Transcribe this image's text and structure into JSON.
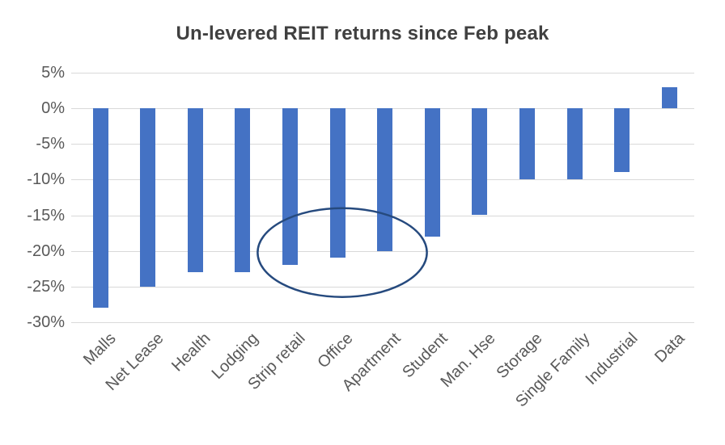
{
  "chart_data": {
    "type": "bar",
    "title": "Un-levered REIT returns since Feb peak",
    "categories": [
      "Malls",
      "Net Lease",
      "Health",
      "Lodging",
      "Strip retail",
      "Office",
      "Apartment",
      "Student",
      "Man. Hse",
      "Storage",
      "Single Family",
      "Industrial",
      "Data"
    ],
    "values": [
      -28,
      -25,
      -23,
      -23,
      -22,
      -21,
      -20,
      -18,
      -15,
      -10,
      -10,
      -9,
      3
    ],
    "unit": "%",
    "xlabel": "",
    "ylabel": "",
    "ylim": [
      -30,
      5
    ],
    "y_ticks": [
      5,
      0,
      -5,
      -10,
      -15,
      -20,
      -25,
      -30
    ],
    "y_tick_labels": [
      "5%",
      "0%",
      "-5%",
      "-10%",
      "-15%",
      "-20%",
      "-25%",
      "-30%"
    ],
    "grid": true,
    "legend": "none",
    "bar_color": "#4472C4",
    "annotation": {
      "shape": "ellipse",
      "circled_categories": [
        "Strip retail",
        "Office",
        "Apartment"
      ],
      "center_value": -20,
      "color": "#264A7E"
    },
    "colors": {
      "title": "#404040",
      "tick_label": "#595959",
      "gridline": "#D9D9D9",
      "background": "#FFFFFF"
    }
  }
}
